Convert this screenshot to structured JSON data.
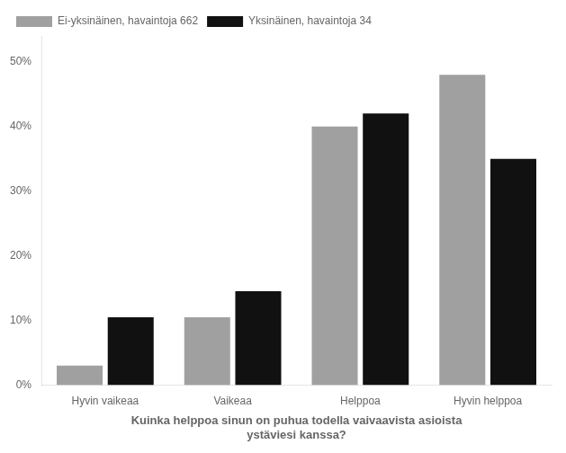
{
  "chart_data": {
    "type": "bar",
    "categories": [
      "Hyvin vaikeaa",
      "Vaikeaa",
      "Helppoa",
      "Hyvin helppoa"
    ],
    "series": [
      {
        "name": "Ei-yksinäinen, havaintoja 662",
        "color": "#a0a0a0",
        "values": [
          3.0,
          10.5,
          40.0,
          48.0
        ]
      },
      {
        "name": "Yksinäinen, havaintoja 34",
        "color": "#111111",
        "values": [
          10.5,
          14.5,
          42.0,
          35.0
        ]
      }
    ],
    "ylim": [
      0,
      54
    ],
    "yticks": [
      {
        "value": 0,
        "label": "0%"
      },
      {
        "value": 10,
        "label": "10%"
      },
      {
        "value": 20,
        "label": "20%"
      },
      {
        "value": 30,
        "label": "30%"
      },
      {
        "value": 40,
        "label": "40%"
      },
      {
        "value": 50,
        "label": "50%"
      }
    ],
    "xlabel": "Kuinka helppoa sinun on puhua todella vaivaavista asioista\nystäviesi kanssa?",
    "legend": "upper left",
    "grid": false
  }
}
